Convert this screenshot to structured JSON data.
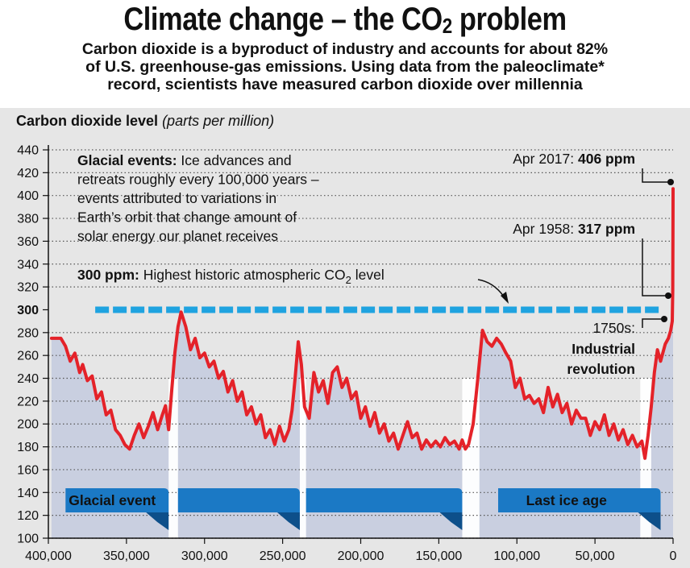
{
  "title": "Climate change – the CO",
  "title_sub": "2",
  "title_suffix": " problem",
  "subtitle": [
    "Carbon dioxide is a byproduct of industry and accounts for about 82%",
    "of U.S. greenhouse-gas emissions. Using data from the paleoclimate*",
    "record, scientists have measured carbon dioxide over millennia"
  ],
  "chart_data": {
    "type": "line",
    "ylabel_bold": "Carbon dioxide level",
    "ylabel_italic": "(parts per million)",
    "xlim": [
      400000,
      0
    ],
    "ylim": [
      100,
      440
    ],
    "yticks": [
      100,
      120,
      140,
      160,
      180,
      200,
      220,
      240,
      260,
      280,
      300,
      320,
      340,
      360,
      380,
      400,
      420,
      440
    ],
    "yticks_bold": [
      300
    ],
    "xticks": [
      400000,
      350000,
      300000,
      250000,
      200000,
      150000,
      100000,
      50000,
      0
    ],
    "xtick_labels": [
      "400,000",
      "350,000",
      "300,000",
      "250,000",
      "200,000",
      "150,000",
      "100,000",
      "50,000",
      "0"
    ],
    "series": [
      {
        "color": "#e42229",
        "x": [
          398000,
          392000,
          389000,
          386000,
          383000,
          380000,
          378000,
          375000,
          372000,
          369000,
          366000,
          363000,
          360000,
          357000,
          354000,
          351000,
          348000,
          345000,
          342000,
          339000,
          336000,
          333000,
          330000,
          327000,
          325000,
          323000,
          321000,
          319000,
          317000,
          315000,
          312000,
          309000,
          306000,
          303000,
          300000,
          297000,
          294000,
          291000,
          288000,
          285000,
          282000,
          279000,
          276000,
          273000,
          270000,
          267000,
          264000,
          261000,
          258000,
          255000,
          252000,
          249000,
          246000,
          244000,
          242000,
          240000,
          238000,
          236000,
          233000,
          230000,
          227000,
          224000,
          221000,
          218000,
          215000,
          212000,
          209000,
          206000,
          203000,
          200000,
          197000,
          194000,
          191000,
          188000,
          185000,
          182000,
          179000,
          176000,
          173000,
          170000,
          167000,
          164000,
          161000,
          158000,
          155000,
          152000,
          149000,
          146000,
          143000,
          140000,
          137000,
          135000,
          133000,
          131000,
          128000,
          125000,
          122000,
          119000,
          116000,
          113000,
          110000,
          107000,
          104000,
          101000,
          98000,
          95000,
          92000,
          89000,
          86000,
          83000,
          80000,
          77000,
          74000,
          71000,
          68000,
          65000,
          62000,
          59000,
          56000,
          53000,
          50000,
          47000,
          44000,
          41000,
          38000,
          35000,
          32000,
          29000,
          26000,
          23000,
          20000,
          18000,
          16000,
          14000,
          12000,
          10000,
          8000,
          5000,
          3000,
          1500,
          500,
          200,
          60,
          0
        ],
        "y": [
          275,
          275,
          268,
          255,
          262,
          245,
          252,
          238,
          242,
          222,
          228,
          208,
          212,
          195,
          190,
          182,
          178,
          190,
          200,
          188,
          198,
          210,
          195,
          208,
          216,
          195,
          230,
          262,
          285,
          298,
          285,
          265,
          275,
          258,
          262,
          250,
          255,
          240,
          246,
          228,
          238,
          220,
          228,
          208,
          215,
          200,
          208,
          188,
          195,
          182,
          198,
          185,
          195,
          212,
          240,
          272,
          252,
          215,
          205,
          245,
          228,
          238,
          218,
          245,
          250,
          232,
          240,
          222,
          228,
          205,
          215,
          198,
          210,
          192,
          200,
          185,
          192,
          178,
          190,
          202,
          188,
          192,
          178,
          186,
          180,
          185,
          180,
          188,
          182,
          185,
          178,
          186,
          178,
          182,
          200,
          240,
          282,
          272,
          268,
          275,
          270,
          262,
          255,
          232,
          240,
          222,
          225,
          218,
          222,
          210,
          232,
          215,
          226,
          210,
          218,
          200,
          212,
          205,
          205,
          190,
          202,
          195,
          208,
          190,
          200,
          186,
          195,
          182,
          190,
          180,
          185,
          170,
          190,
          215,
          245,
          265,
          255,
          270,
          275,
          282,
          290,
          317,
          380,
          406
        ]
      }
    ],
    "annotations": {
      "glacial_bold": "Glacial events:",
      "glacial_lines": [
        " Ice advances and",
        "retreats roughly every 100,000 years –",
        "events attributed to variations in",
        "Earth’s orbit that change amount of",
        "solar energy our planet receives"
      ],
      "historic_bold": "300 ppm:",
      "historic_text": " Highest historic atmospheric CO",
      "historic_sub": "2",
      "historic_suffix": " level",
      "apr2017_text": "Apr 2017: ",
      "apr2017_value": "406 ppm",
      "apr1958_text": "Apr 1958: ",
      "apr1958_value": "317 ppm",
      "ind_year": "1750s:",
      "ind_line1": "Industrial",
      "ind_line2": "revolution"
    },
    "glacial_labels": [
      "Glacial event",
      "",
      "",
      "Last ice age"
    ],
    "colors": {
      "line": "#e42229",
      "reference": "#1fa3e0",
      "banner": "#1b79c5",
      "banner_dark": "#0d4f8a",
      "shading": "#c9cfe0",
      "panel": "#e6e6e6"
    }
  }
}
